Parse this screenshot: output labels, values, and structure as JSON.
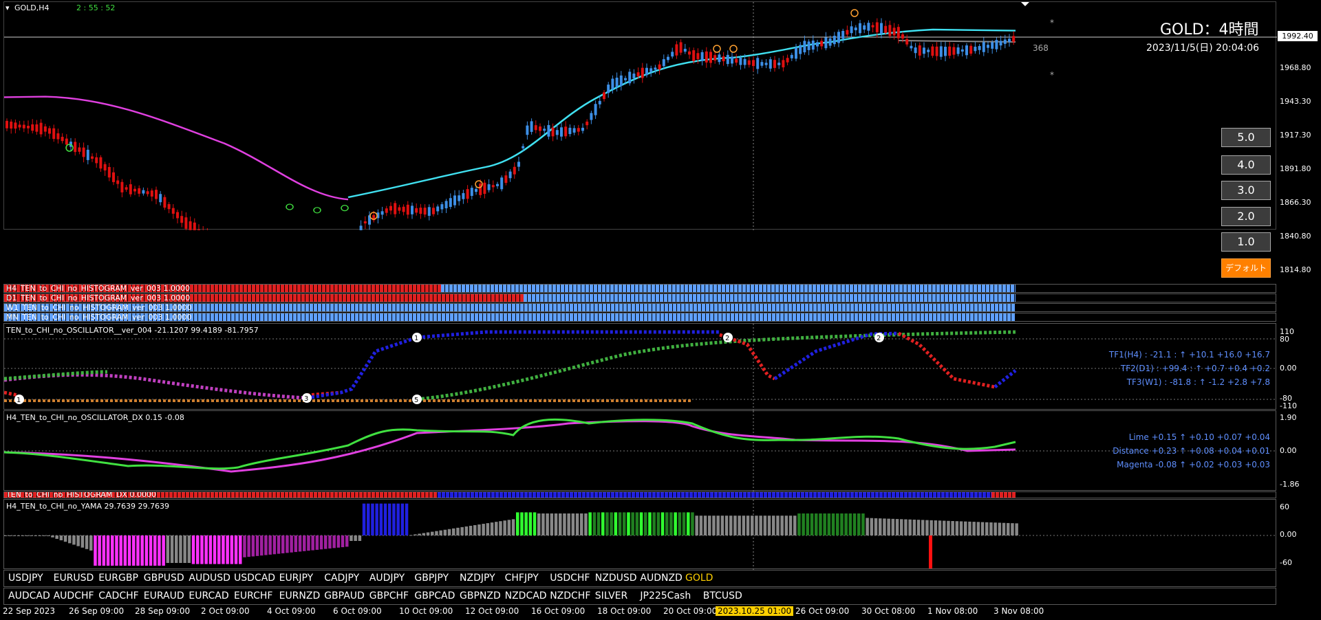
{
  "chart": {
    "symbol": "GOLD,H4",
    "countdown": "2 : 55 : 52",
    "title": "GOLD：4時間",
    "datetime": "2023/11/5(日) 20:04:06",
    "current_price": "1992.40",
    "bars_count": "368",
    "price_scale": [
      "1968.80",
      "1943.30",
      "1917.30",
      "1891.80",
      "1866.30",
      "1840.80",
      "1814.80"
    ]
  },
  "side_buttons": [
    "5.0",
    "4.0",
    "3.0",
    "2.0",
    "1.0",
    "デフォルト"
  ],
  "histograms": [
    {
      "label": "H4_TEN_to_CHI_no_HISTOGRAM_ver_003 1.0000",
      "red_fraction": 0.36
    },
    {
      "label": "D1_TEN_to_CHI_no_HISTOGRAM_ver_003 1.0000",
      "red_fraction": 0.42
    },
    {
      "label": "W1_TEN_to_CHI_no_HISTOGRAM_ver_003 1.0000",
      "red_fraction": 0.0
    },
    {
      "label": "MN_TEN_to_CHI_no_HISTOGRAM_ver_003 1.0000",
      "red_fraction": 0.0
    }
  ],
  "oscillator": {
    "label": "TEN_to_CHI_no_OSCILLATOR__ver_004 -21.1207 99.4189 -81.7957",
    "scale": [
      "110",
      "80",
      "0.00",
      "-80",
      "-110"
    ],
    "info": [
      "TF1(H4) : -21.1 : ↑ +10.1 +16.0 +16.7",
      "TF2(D1) : +99.4 : ↑ +0.7 +0.4 +0.2",
      "TF3(W1) : -81.8 : ↑ -1.2 +2.8 +7.8"
    ]
  },
  "dx": {
    "label": "H4_TEN_to_CHI_no_OSCILLATOR_DX 0.15 -0.08",
    "scale": [
      "1.90",
      "0.00",
      "-1.86"
    ],
    "info": [
      "Lime +0.15 ↑ +0.10 +0.07 +0.04",
      "Distance +0.23 ↑ +0.08 +0.04 +0.01",
      "Magenta -0.08 ↑ +0.02 +0.03 +0.03"
    ]
  },
  "dx_histogram": {
    "label": "TEN_to_CHI_no_HISTOGRAM_DX 0.0000"
  },
  "yama": {
    "label": "H4_TEN_to_CHI_no_YAMA 29.7639 29.7639",
    "scale": [
      "60",
      "0.00",
      "-60"
    ]
  },
  "symbols_row1": [
    "USDJPY",
    "EURUSD",
    "EURGBP",
    "GBPUSD",
    "AUDUSD",
    "USDCAD",
    "EURJPY",
    "CADJPY",
    "AUDJPY",
    "GBPJPY",
    "NZDJPY",
    "CHFJPY",
    "USDCHF",
    "NZDUSD",
    "AUDNZD",
    "GOLD"
  ],
  "symbols_row2": [
    "AUDCAD",
    "AUDCHF",
    "CADCHF",
    "EURAUD",
    "EURCAD",
    "EURCHF",
    "EURNZD",
    "GBPAUD",
    "GBPCHF",
    "GBPCAD",
    "GBPNZD",
    "NZDCAD",
    "NZDCHF",
    "SILVER",
    "JP225Cash",
    "BTCUSD"
  ],
  "date_axis": [
    "22 Sep 2023",
    "26 Sep 09:00",
    "28 Sep 09:00",
    "2 Oct 09:00",
    "4 Oct 09:00",
    "6 Oct 09:00",
    "10 Oct 09:00",
    "12 Oct 09:00",
    "16 Oct 09:00",
    "18 Oct 09:00",
    "20 Oct 09:00",
    "2023.10.25 01:00",
    "26 Oct 09:00",
    "30 Oct 08:00",
    "1 Nov 08:00",
    "3 Nov 08:00"
  ],
  "colors": {
    "bull": "#3d8fe6",
    "bear": "#e01010",
    "ma_magenta": "#e040e0",
    "ma_cyan": "#40e0f0",
    "lime": "#40e040",
    "highlight": "#ffd000"
  }
}
